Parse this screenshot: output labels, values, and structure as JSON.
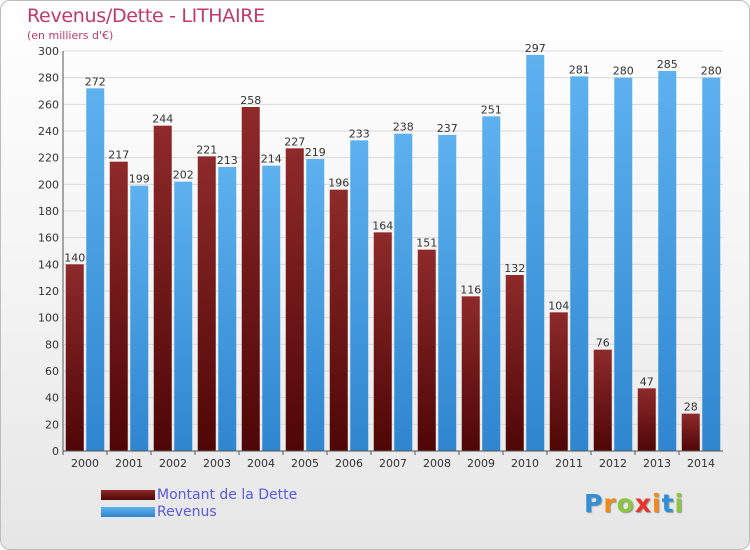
{
  "header": {
    "title": "Revenus/Dette - LITHAIRE",
    "subtitle": "(en milliers d'€)"
  },
  "legend": {
    "items": [
      {
        "label": "Montant de la Dette",
        "color": "#7a1a1a"
      },
      {
        "label": "Revenus",
        "color": "#4aa3e6"
      }
    ]
  },
  "logo": {
    "letters": [
      "P",
      "r",
      "o",
      "x",
      "i",
      "t",
      "i"
    ],
    "colors": [
      "#2f8fd8",
      "#f08a1c",
      "#8cc63f",
      "#e8352b",
      "#f08a1c",
      "#2f8fd8",
      "#8cc63f"
    ]
  },
  "chart_data": {
    "type": "bar",
    "title": "Revenus/Dette - LITHAIRE",
    "subtitle": "(en milliers d'€)",
    "xlabel": "",
    "ylabel": "",
    "ylim": [
      0,
      300
    ],
    "yticks": [
      0,
      20,
      40,
      60,
      80,
      100,
      120,
      140,
      160,
      180,
      200,
      220,
      240,
      260,
      280,
      300
    ],
    "grid": true,
    "legend_position": "bottom-left",
    "categories": [
      "2000",
      "2001",
      "2002",
      "2003",
      "2004",
      "2005",
      "2006",
      "2007",
      "2008",
      "2009",
      "2010",
      "2011",
      "2012",
      "2013",
      "2014"
    ],
    "series": [
      {
        "name": "Montant de la Dette",
        "color": "#7a1a1a",
        "values": [
          140,
          217,
          244,
          221,
          258,
          227,
          196,
          164,
          151,
          116,
          132,
          104,
          76,
          47,
          28
        ]
      },
      {
        "name": "Revenus",
        "color": "#4aa3e6",
        "values": [
          272,
          199,
          202,
          213,
          214,
          219,
          233,
          238,
          237,
          251,
          297,
          281,
          280,
          285,
          280
        ]
      }
    ]
  }
}
